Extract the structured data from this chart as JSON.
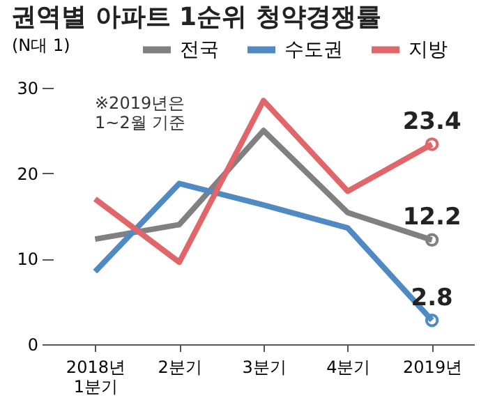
{
  "chart_data": {
    "type": "line",
    "title": "권역별 아파트 1순위 청약경쟁률",
    "ylabel": "(N대 1)",
    "categories": [
      "2018년 1분기",
      "2분기",
      "3분기",
      "4분기",
      "2019년"
    ],
    "series": [
      {
        "name": "전국",
        "color": "#808080",
        "values": [
          12.3,
          14,
          25,
          15.4,
          12.2
        ],
        "value_labels": [
          null,
          null,
          null,
          null,
          "12.2"
        ]
      },
      {
        "name": "수도권",
        "color": "#4f8ac2",
        "values": [
          8.5,
          18.8,
          16.3,
          13.6,
          2.8
        ],
        "value_labels": [
          null,
          null,
          null,
          null,
          "2.8"
        ]
      },
      {
        "name": "지방",
        "color": "#e0666a",
        "values": [
          17,
          9.6,
          28.5,
          17.9,
          23.4
        ],
        "value_labels": [
          null,
          null,
          null,
          null,
          "23.4"
        ]
      }
    ],
    "ylim": [
      0,
      30
    ],
    "yticks": [
      0,
      10,
      20,
      30
    ],
    "grid": false,
    "legend": "top",
    "marker": "none",
    "line_style": "solid",
    "annotations": [
      "※2019년은\n1~2월 기준"
    ]
  }
}
